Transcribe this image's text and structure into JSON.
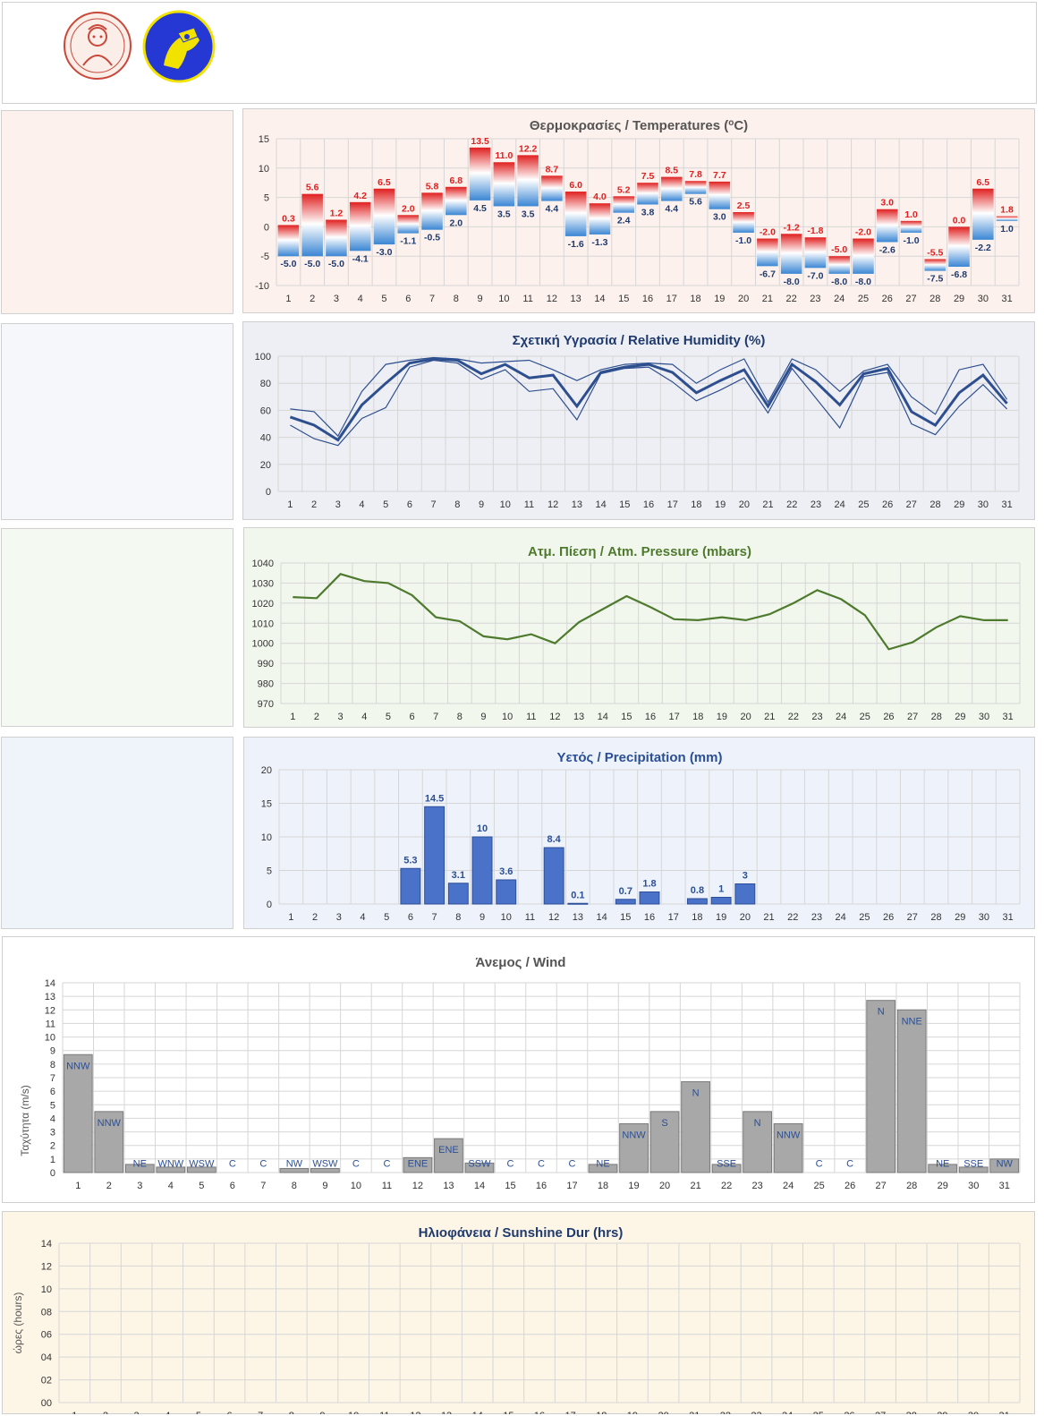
{
  "days": [
    "1",
    "2",
    "3",
    "4",
    "5",
    "6",
    "7",
    "8",
    "9",
    "10",
    "11",
    "12",
    "13",
    "14",
    "15",
    "16",
    "17",
    "18",
    "19",
    "20",
    "21",
    "22",
    "23",
    "24",
    "25",
    "26",
    "27",
    "28",
    "29",
    "30",
    "31"
  ],
  "colors": {
    "temp_max": "#e02020",
    "temp_min": "#1f3a6e",
    "humidity": "#2e4f8f",
    "pressure": "#4e7a2e",
    "precip_bar": "#4a72c8",
    "precip_label": "#2b4f94",
    "wind_bar": "#a8a8a8",
    "wind_label": "#2b4f94",
    "sunshine_title": "#1f3a6e"
  },
  "charts": {
    "temperature": {
      "title": "Θερμοκρασίες / Temperatures (",
      "title_sup": "ο",
      "title_end": "C)",
      "yticks": [
        "15",
        "10",
        "5",
        "0",
        "-5",
        "-10"
      ],
      "ylim": [
        -10,
        15
      ],
      "max": [
        0.3,
        5.6,
        1.2,
        4.2,
        6.5,
        2.0,
        5.8,
        6.8,
        13.5,
        11.0,
        12.2,
        8.7,
        6.0,
        4.0,
        5.2,
        7.5,
        8.5,
        7.8,
        7.7,
        2.5,
        -2.0,
        -1.2,
        -1.8,
        -5.0,
        -2.0,
        3.0,
        1.0,
        -5.5,
        0.0,
        6.5,
        1.8
      ],
      "min": [
        -5.0,
        -5.0,
        -5.0,
        -4.1,
        -3.0,
        -1.1,
        -0.5,
        2.0,
        4.5,
        3.5,
        3.5,
        4.4,
        -1.6,
        -1.3,
        2.4,
        3.8,
        4.4,
        5.6,
        3.0,
        -1.0,
        -6.7,
        -8.0,
        -7.0,
        -8.0,
        -8.0,
        -2.6,
        -1.0,
        -7.5,
        -6.8,
        -2.2,
        1.0
      ]
    },
    "humidity": {
      "title": "Σχετική Υγρασία / Relative Humidity (%)",
      "yticks": [
        "100",
        "80",
        "60",
        "40",
        "20",
        "0"
      ],
      "ylim": [
        0,
        100
      ],
      "mean": [
        55,
        49,
        38,
        64,
        80,
        95,
        98,
        97,
        87,
        94,
        84,
        86,
        63,
        88,
        92,
        94,
        88,
        73,
        82,
        90,
        63,
        94,
        81,
        64,
        87,
        91,
        59,
        49,
        73,
        86,
        65
      ],
      "max": [
        61,
        59,
        41,
        74,
        94,
        97,
        99,
        98,
        95,
        96,
        97,
        90,
        82,
        90,
        94,
        95,
        94,
        80,
        90,
        98,
        66,
        98,
        90,
        74,
        89,
        94,
        70,
        57,
        90,
        94,
        68
      ],
      "min": [
        49,
        39,
        34,
        54,
        62,
        92,
        97,
        95,
        83,
        90,
        74,
        76,
        53,
        87,
        91,
        92,
        81,
        67,
        75,
        84,
        58,
        91,
        69,
        47,
        85,
        88,
        50,
        42,
        63,
        79,
        61
      ]
    },
    "pressure": {
      "title": "Ατμ. Πίεση / Atm. Pressure (mbars)",
      "yticks": [
        "1040",
        "1030",
        "1020",
        "1010",
        "1000",
        "990",
        "980",
        "970"
      ],
      "ylim": [
        970,
        1040
      ],
      "values": [
        1023,
        1022.5,
        1034.5,
        1031,
        1030,
        1024,
        1013,
        1011,
        1003.5,
        1002,
        1004.5,
        1000,
        1010.5,
        1017,
        1023.5,
        1018,
        1012,
        1011.5,
        1013,
        1011.5,
        1014.5,
        1020,
        1026.5,
        1022,
        1014,
        997,
        1000.5,
        1008,
        1013.5,
        1011.5,
        1011.5
      ]
    },
    "precipitation": {
      "title": "Υετός / Precipitation (mm)",
      "yticks": [
        "20",
        "15",
        "10",
        "5",
        "0"
      ],
      "ylim": [
        0,
        20
      ],
      "values": [
        null,
        null,
        null,
        null,
        null,
        5.3,
        14.5,
        3.1,
        10,
        3.6,
        null,
        8.4,
        0.1,
        null,
        0.7,
        1.8,
        null,
        0.8,
        1,
        3,
        null,
        null,
        null,
        null,
        null,
        null,
        null,
        null,
        null,
        null,
        null
      ],
      "labels": [
        "",
        "",
        "",
        "",
        "",
        "5.3",
        "14.5",
        "3.1",
        "10",
        "3.6",
        "",
        "8.4",
        "0.1",
        "",
        "0.7",
        "1.8",
        "",
        "0.8",
        "1",
        "3",
        "",
        "",
        "",
        "",
        "",
        "",
        "",
        "",
        "",
        "",
        ""
      ]
    },
    "wind": {
      "title": "Άνεμος / Wind",
      "ylabel": "Ταχύτητα  (m/s)",
      "yticks": [
        "14",
        "13",
        "12",
        "11",
        "10",
        "9",
        "8",
        "7",
        "6",
        "5",
        "4",
        "3",
        "2",
        "1",
        "0"
      ],
      "ylim": [
        0,
        14
      ],
      "speed": [
        8.7,
        4.5,
        0.6,
        0.4,
        0.4,
        0,
        0,
        0.3,
        0.3,
        0,
        0,
        1.1,
        2.5,
        0.7,
        0,
        0,
        0,
        0.6,
        3.6,
        4.5,
        6.7,
        0.6,
        4.5,
        3.6,
        0,
        0,
        12.7,
        12.0,
        0.6,
        0.4,
        1.0
      ],
      "direction": [
        "NNW",
        "NNW",
        "NE",
        "WNW",
        "WSW",
        "C",
        "C",
        "NW",
        "WSW",
        "C",
        "C",
        "ENE",
        "ENE",
        "SSW",
        "C",
        "C",
        "C",
        "NE",
        "NNW",
        "S",
        "N",
        "SSE",
        "N",
        "NNW",
        "C",
        "C",
        "N",
        "NNE",
        "NE",
        "SSE",
        "NW"
      ]
    },
    "sunshine": {
      "title": "Ηλιοφάνεια / Sunshine Dur (hrs)",
      "ylabel": "ώρες (hours)",
      "yticks": [
        "14",
        "12",
        "10",
        "08",
        "06",
        "04",
        "02",
        "00"
      ],
      "ylim": [
        0,
        14
      ]
    }
  }
}
